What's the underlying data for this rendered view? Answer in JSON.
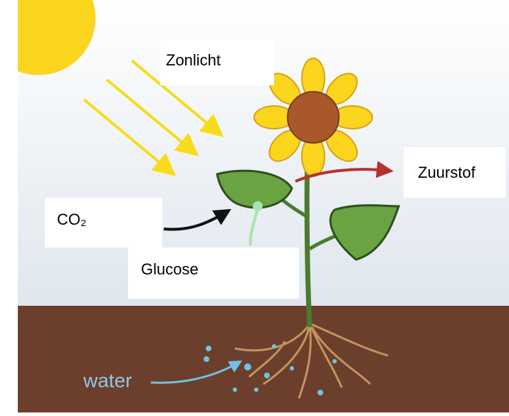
{
  "labels": {
    "sunlight": "Zonlicht",
    "oxygen": "Zuurstof",
    "co2": "CO₂",
    "glucose": "Glucose",
    "water": "water"
  }
}
